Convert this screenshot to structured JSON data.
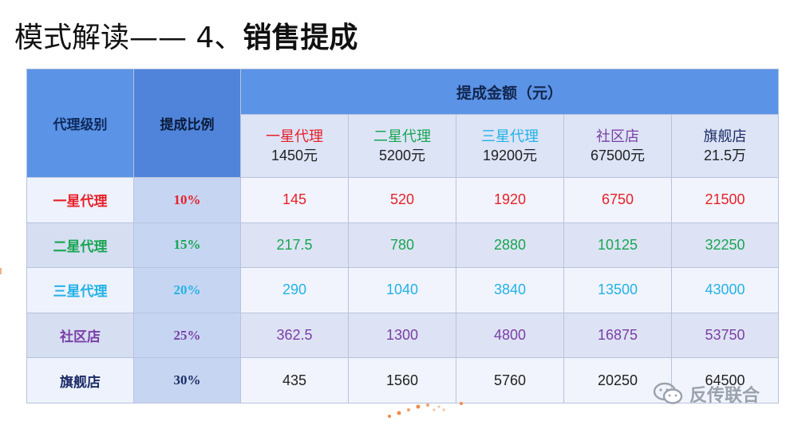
{
  "title": {
    "prefix": "模式解读—— 4、",
    "bold": "销售提成"
  },
  "table": {
    "header_level": "代理级别",
    "header_rate": "提成比例",
    "header_amount": "提成金额（元）",
    "columns": [
      {
        "name": "一星代理",
        "price": "1450元",
        "color": "#e8202a"
      },
      {
        "name": "二星代理",
        "price": "5200元",
        "color": "#19a553"
      },
      {
        "name": "三星代理",
        "price": "19200元",
        "color": "#24b2e6"
      },
      {
        "name": "社区店",
        "price": "67500元",
        "color": "#7a3fa6"
      },
      {
        "name": "旗舰店",
        "price": "21.5万",
        "color": "#1c2c66"
      }
    ],
    "rows": [
      {
        "level": "一星代理",
        "rate": "10%",
        "values": [
          "145",
          "520",
          "1920",
          "6750",
          "21500"
        ],
        "color": "#e8202a"
      },
      {
        "level": "二星代理",
        "rate": "15%",
        "values": [
          "217.5",
          "780",
          "2880",
          "10125",
          "32250"
        ],
        "color": "#19a553"
      },
      {
        "level": "三星代理",
        "rate": "20%",
        "values": [
          "290",
          "1040",
          "3840",
          "13500",
          "43000"
        ],
        "color": "#24b2e6"
      },
      {
        "level": "社区店",
        "rate": "25%",
        "values": [
          "362.5",
          "1300",
          "4800",
          "16875",
          "53750"
        ],
        "color": "#7a3fa6"
      },
      {
        "level": "旗舰店",
        "rate": "30%",
        "values": [
          "435",
          "1560",
          "5760",
          "20250",
          "64500"
        ],
        "color": "#1c2c66"
      }
    ]
  },
  "watermark": {
    "text": "反传联合",
    "icon": "wechat-icon"
  }
}
